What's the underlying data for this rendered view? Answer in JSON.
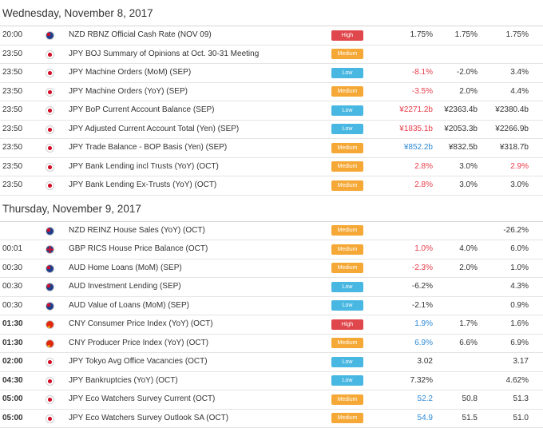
{
  "colors": {
    "high": "#e0474c",
    "medium": "#f5a835",
    "low": "#48b7e1",
    "negative_surprise": "#e83c4a",
    "positive_surprise": "#2e8ad6",
    "neutral": "#333333"
  },
  "days": [
    {
      "date": "Wednesday, November 8, 2017",
      "events": [
        {
          "time": "20:00",
          "bold_time": false,
          "flag": "nz-flag-icon",
          "event": "NZD RBNZ Official Cash Rate (NOV 09)",
          "importance": "High",
          "actual": "1.75%",
          "actual_color": "neutral",
          "forecast": "1.75%",
          "previous": "1.75%",
          "previous_color": "neutral"
        },
        {
          "time": "23:50",
          "bold_time": false,
          "flag": "jp-flag-icon",
          "event": "JPY BOJ Summary of Opinions at Oct. 30-31 Meeting",
          "importance": "Medium",
          "actual": "",
          "actual_color": "neutral",
          "forecast": "",
          "previous": "",
          "previous_color": "neutral"
        },
        {
          "time": "23:50",
          "bold_time": false,
          "flag": "jp-flag-icon",
          "event": "JPY Machine Orders (MoM) (SEP)",
          "importance": "Low",
          "actual": "-8.1%",
          "actual_color": "red",
          "forecast": "-2.0%",
          "previous": "3.4%",
          "previous_color": "neutral"
        },
        {
          "time": "23:50",
          "bold_time": false,
          "flag": "jp-flag-icon",
          "event": "JPY Machine Orders (YoY) (SEP)",
          "importance": "Medium",
          "actual": "-3.5%",
          "actual_color": "red",
          "forecast": "2.0%",
          "previous": "4.4%",
          "previous_color": "neutral"
        },
        {
          "time": "23:50",
          "bold_time": false,
          "flag": "jp-flag-icon",
          "event": "JPY BoP Current Account Balance (SEP)",
          "importance": "Low",
          "actual": "¥2271.2b",
          "actual_color": "red",
          "forecast": "¥2363.4b",
          "previous": "¥2380.4b",
          "previous_color": "neutral"
        },
        {
          "time": "23:50",
          "bold_time": false,
          "flag": "jp-flag-icon",
          "event": "JPY Adjusted Current Account Total (Yen) (SEP)",
          "importance": "Low",
          "actual": "¥1835.1b",
          "actual_color": "red",
          "forecast": "¥2053.3b",
          "previous": "¥2266.9b",
          "previous_color": "neutral"
        },
        {
          "time": "23:50",
          "bold_time": false,
          "flag": "jp-flag-icon",
          "event": "JPY Trade Balance - BOP Basis (Yen) (SEP)",
          "importance": "Medium",
          "actual": "¥852.2b",
          "actual_color": "blue",
          "forecast": "¥832.5b",
          "previous": "¥318.7b",
          "previous_color": "neutral"
        },
        {
          "time": "23:50",
          "bold_time": false,
          "flag": "jp-flag-icon",
          "event": "JPY Bank Lending incl Trusts (YoY) (OCT)",
          "importance": "Medium",
          "actual": "2.8%",
          "actual_color": "red",
          "forecast": "3.0%",
          "previous": "2.9%",
          "previous_color": "red"
        },
        {
          "time": "23:50",
          "bold_time": false,
          "flag": "jp-flag-icon",
          "event": "JPY Bank Lending Ex-Trusts (YoY) (OCT)",
          "importance": "Medium",
          "actual": "2.8%",
          "actual_color": "red",
          "forecast": "3.0%",
          "previous": "3.0%",
          "previous_color": "neutral"
        }
      ]
    },
    {
      "date": "Thursday, November 9, 2017",
      "events": [
        {
          "time": "",
          "bold_time": false,
          "flag": "nz-flag-icon",
          "event": "NZD REINZ House Sales (YoY) (OCT)",
          "importance": "Medium",
          "actual": "",
          "actual_color": "neutral",
          "forecast": "",
          "previous": "-26.2%",
          "previous_color": "neutral"
        },
        {
          "time": "00:01",
          "bold_time": false,
          "flag": "gb-flag-icon",
          "event": "GBP RICS House Price Balance (OCT)",
          "importance": "Medium",
          "actual": "1.0%",
          "actual_color": "red",
          "forecast": "4.0%",
          "previous": "6.0%",
          "previous_color": "neutral"
        },
        {
          "time": "00:30",
          "bold_time": false,
          "flag": "au-flag-icon",
          "event": "AUD Home Loans (MoM) (SEP)",
          "importance": "Medium",
          "actual": "-2.3%",
          "actual_color": "red",
          "forecast": "2.0%",
          "previous": "1.0%",
          "previous_color": "neutral"
        },
        {
          "time": "00:30",
          "bold_time": false,
          "flag": "au-flag-icon",
          "event": "AUD Investment Lending (SEP)",
          "importance": "Low",
          "actual": "-6.2%",
          "actual_color": "neutral",
          "forecast": "",
          "previous": "4.3%",
          "previous_color": "neutral"
        },
        {
          "time": "00:30",
          "bold_time": false,
          "flag": "au-flag-icon",
          "event": "AUD Value of Loans (MoM) (SEP)",
          "importance": "Low",
          "actual": "-2.1%",
          "actual_color": "neutral",
          "forecast": "",
          "previous": "0.9%",
          "previous_color": "neutral"
        },
        {
          "time": "01:30",
          "bold_time": true,
          "flag": "cn-flag-icon",
          "event": "CNY Consumer Price Index (YoY) (OCT)",
          "importance": "High",
          "actual": "1.9%",
          "actual_color": "blue",
          "forecast": "1.7%",
          "previous": "1.6%",
          "previous_color": "neutral"
        },
        {
          "time": "01:30",
          "bold_time": true,
          "flag": "cn-flag-icon",
          "event": "CNY Producer Price Index (YoY) (OCT)",
          "importance": "Medium",
          "actual": "6.9%",
          "actual_color": "blue",
          "forecast": "6.6%",
          "previous": "6.9%",
          "previous_color": "neutral"
        },
        {
          "time": "02:00",
          "bold_time": true,
          "flag": "jp-flag-icon",
          "event": "JPY Tokyo Avg Office Vacancies (OCT)",
          "importance": "Low",
          "actual": "3.02",
          "actual_color": "neutral",
          "forecast": "",
          "previous": "3.17",
          "previous_color": "neutral"
        },
        {
          "time": "04:30",
          "bold_time": true,
          "flag": "jp-flag-icon",
          "event": "JPY Bankruptcies (YoY) (OCT)",
          "importance": "Low",
          "actual": "7.32%",
          "actual_color": "neutral",
          "forecast": "",
          "previous": "4.62%",
          "previous_color": "neutral"
        },
        {
          "time": "05:00",
          "bold_time": true,
          "flag": "jp-flag-icon",
          "event": "JPY Eco Watchers Survey Current (OCT)",
          "importance": "Medium",
          "actual": "52.2",
          "actual_color": "blue",
          "forecast": "50.8",
          "previous": "51.3",
          "previous_color": "neutral"
        },
        {
          "time": "05:00",
          "bold_time": true,
          "flag": "jp-flag-icon",
          "event": "JPY Eco Watchers Survey Outlook SA (OCT)",
          "importance": "Medium",
          "actual": "54.9",
          "actual_color": "blue",
          "forecast": "51.5",
          "previous": "51.0",
          "previous_color": "neutral"
        }
      ]
    }
  ]
}
